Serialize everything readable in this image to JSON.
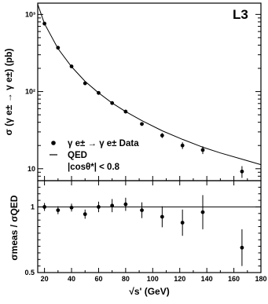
{
  "chart_data": [
    {
      "type": "scatter",
      "panel": "top",
      "experiment_tag": "L3",
      "ylabel": "σ (γ e± → γ e±) (pb)",
      "yscale": "log",
      "xlim": [
        15,
        180
      ],
      "ylim": [
        7,
        1400
      ],
      "y_major_ticks": [
        10,
        100,
        1000
      ],
      "y_tick_labels": [
        "10",
        "10²",
        "10³"
      ],
      "series": [
        {
          "name": "γ e± → γ e±  Data",
          "marker": "filled-circle",
          "points": [
            {
              "x": 20,
              "y": 760
            },
            {
              "x": 30,
              "y": 370
            },
            {
              "x": 40,
              "y": 212
            },
            {
              "x": 50,
              "y": 128
            },
            {
              "x": 60,
              "y": 96
            },
            {
              "x": 70,
              "y": 71
            },
            {
              "x": 80,
              "y": 55
            },
            {
              "x": 92,
              "y": 38
            },
            {
              "x": 107,
              "y": 27
            },
            {
              "x": 122,
              "y": 20
            },
            {
              "x": 137,
              "y": 17.5
            },
            {
              "x": 166,
              "y": 9.2
            }
          ],
          "yerr": [
            30,
            15,
            8,
            6,
            4,
            3,
            3,
            2,
            2,
            2,
            2,
            1.6
          ]
        },
        {
          "name": "QED",
          "marker": "line",
          "curve": {
            "x": [
              15,
              20,
              30,
              40,
              50,
              60,
              70,
              80,
              92,
              107,
              122,
              137,
              150,
              166,
              180
            ],
            "y": [
              1350,
              760,
              360,
              210,
              136,
              96,
              71,
              55,
              42,
              31,
              24,
              19,
              16,
              13.3,
              11.3
            ]
          }
        }
      ],
      "legend": {
        "entries": [
          "γ e± → γ e±  Data",
          "QED"
        ],
        "extra_label": "|cosθ*| < 0.8",
        "placement": "bottom-left"
      }
    },
    {
      "type": "scatter",
      "panel": "bottom",
      "xlabel": "√s' (GeV)",
      "ylabel": "σmeas / σQED",
      "xlim": [
        15,
        180
      ],
      "ylim": [
        0.5,
        1.2
      ],
      "x_ticks": [
        20,
        40,
        60,
        80,
        100,
        120,
        140,
        160,
        180
      ],
      "y_ticks": [
        0.5,
        1
      ],
      "reference_line": 1,
      "points": [
        {
          "x": 20,
          "y": 1.0,
          "err": 0.03
        },
        {
          "x": 30,
          "y": 0.975,
          "err": 0.03
        },
        {
          "x": 40,
          "y": 0.995,
          "err": 0.03
        },
        {
          "x": 50,
          "y": 0.945,
          "err": 0.035
        },
        {
          "x": 60,
          "y": 1.0,
          "err": 0.04
        },
        {
          "x": 70,
          "y": 1.01,
          "err": 0.05
        },
        {
          "x": 80,
          "y": 1.02,
          "err": 0.05
        },
        {
          "x": 92,
          "y": 0.975,
          "err": 0.06
        },
        {
          "x": 107,
          "y": 0.925,
          "err": 0.08
        },
        {
          "x": 122,
          "y": 0.88,
          "err": 0.1
        },
        {
          "x": 137,
          "y": 0.96,
          "err": 0.13
        },
        {
          "x": 166,
          "y": 0.69,
          "err": 0.14
        }
      ]
    }
  ]
}
